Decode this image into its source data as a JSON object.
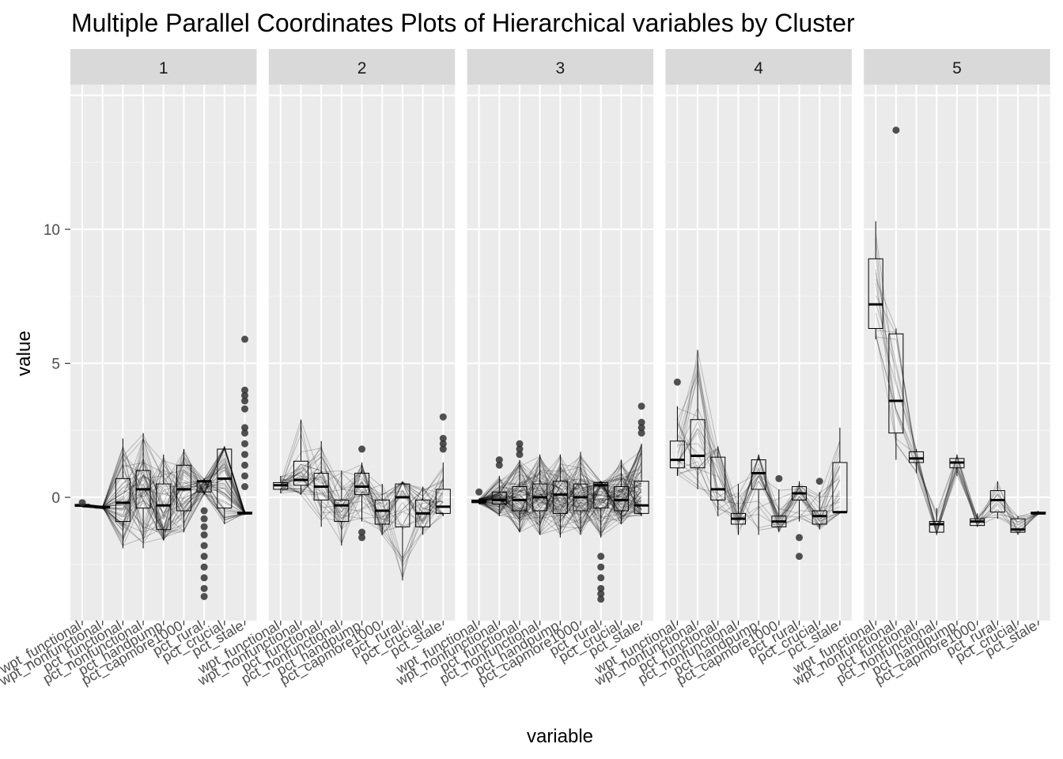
{
  "chart_data": {
    "type": "parallel-coordinates-boxplot",
    "title": "Multiple Parallel Coordinates Plots of Hierarchical variables by Cluster",
    "xlabel": "variable",
    "ylabel": "value",
    "ylim": [
      -4.6,
      15.4
    ],
    "yticks": [
      0,
      5,
      10
    ],
    "grid": true,
    "facets": [
      "1",
      "2",
      "3",
      "4",
      "5"
    ],
    "variables": [
      "wpt_functional",
      "wpt_nonfunctional",
      "pct_functional",
      "pct_nonfunctional",
      "pct_handpump",
      "pct_capmore1000",
      "pct_rural",
      "pct_crucial",
      "pct_stale"
    ],
    "clusters": [
      {
        "name": "1",
        "lines": 60,
        "stats": [
          {
            "q1": -0.34,
            "median": -0.3,
            "q3": -0.26,
            "low": -0.36,
            "high": -0.24,
            "outliers": [
              -0.2
            ]
          },
          {
            "q1": -0.4,
            "median": -0.37,
            "q3": -0.34,
            "low": -0.42,
            "high": -0.32,
            "outliers": []
          },
          {
            "q1": -0.9,
            "median": -0.2,
            "q3": 0.7,
            "low": -1.9,
            "high": 2.2,
            "outliers": []
          },
          {
            "q1": -0.4,
            "median": 0.3,
            "q3": 1.0,
            "low": -1.9,
            "high": 2.4,
            "outliers": []
          },
          {
            "q1": -1.2,
            "median": -0.3,
            "q3": 0.5,
            "low": -1.6,
            "high": 1.6,
            "outliers": []
          },
          {
            "q1": -0.5,
            "median": 0.3,
            "q3": 1.2,
            "low": -1.3,
            "high": 1.8,
            "outliers": []
          },
          {
            "q1": 0.2,
            "median": 0.6,
            "q3": 0.6,
            "low": 0.1,
            "high": 0.7,
            "outliers": [
              -0.5,
              -0.8,
              -1.1,
              -1.4,
              -1.8,
              -2.2,
              -2.6,
              -3.0,
              -3.4,
              -3.7
            ]
          },
          {
            "q1": -0.4,
            "median": 0.7,
            "q3": 1.8,
            "low": -1.0,
            "high": 1.9,
            "outliers": []
          },
          {
            "q1": -0.6,
            "median": -0.6,
            "q3": -0.55,
            "low": -0.65,
            "high": -0.5,
            "outliers": [
              0.4,
              0.8,
              1.2,
              1.6,
              2.0,
              2.4,
              2.6,
              3.3,
              3.6,
              3.8,
              4.0,
              5.9
            ]
          }
        ]
      },
      {
        "name": "2",
        "lines": 35,
        "stats": [
          {
            "q1": 0.3,
            "median": 0.45,
            "q3": 0.55,
            "low": 0.15,
            "high": 0.8,
            "outliers": []
          },
          {
            "q1": 0.45,
            "median": 0.65,
            "q3": 1.35,
            "low": 0.1,
            "high": 2.9,
            "outliers": []
          },
          {
            "q1": -0.1,
            "median": 0.4,
            "q3": 0.9,
            "low": -1.1,
            "high": 2.1,
            "outliers": []
          },
          {
            "q1": -0.9,
            "median": -0.3,
            "q3": -0.1,
            "low": -1.8,
            "high": 1.0,
            "outliers": []
          },
          {
            "q1": 0.1,
            "median": 0.4,
            "q3": 0.9,
            "low": -0.9,
            "high": 1.3,
            "outliers": [
              -1.3,
              -1.5,
              1.8
            ]
          },
          {
            "q1": -1.0,
            "median": -0.5,
            "q3": -0.1,
            "low": -1.4,
            "high": 0.5,
            "outliers": []
          },
          {
            "q1": -1.1,
            "median": 0.0,
            "q3": 0.5,
            "low": -3.1,
            "high": 0.6,
            "outliers": []
          },
          {
            "q1": -1.1,
            "median": -0.6,
            "q3": -0.1,
            "low": -1.4,
            "high": 0.4,
            "outliers": []
          },
          {
            "q1": -0.6,
            "median": -0.35,
            "q3": 0.3,
            "low": -0.7,
            "high": 1.3,
            "outliers": [
              1.8,
              2.0,
              2.2,
              3.0
            ]
          }
        ]
      },
      {
        "name": "3",
        "lines": 90,
        "stats": [
          {
            "q1": -0.2,
            "median": -0.15,
            "q3": -0.1,
            "low": -0.25,
            "high": -0.05,
            "outliers": [
              0.2
            ]
          },
          {
            "q1": -0.25,
            "median": -0.1,
            "q3": 0.2,
            "low": -0.7,
            "high": 0.8,
            "outliers": [
              1.2,
              1.4
            ]
          },
          {
            "q1": -0.5,
            "median": -0.1,
            "q3": 0.4,
            "low": -1.3,
            "high": 1.4,
            "outliers": [
              1.6,
              1.8,
              2.0
            ]
          },
          {
            "q1": -0.5,
            "median": 0.0,
            "q3": 0.5,
            "low": -1.4,
            "high": 1.6,
            "outliers": []
          },
          {
            "q1": -0.6,
            "median": 0.1,
            "q3": 0.6,
            "low": -1.5,
            "high": 1.6,
            "outliers": []
          },
          {
            "q1": -0.5,
            "median": 0.0,
            "q3": 0.5,
            "low": -1.4,
            "high": 1.7,
            "outliers": []
          },
          {
            "q1": -0.4,
            "median": 0.45,
            "q3": 0.55,
            "low": -1.5,
            "high": 0.6,
            "outliers": [
              -2.2,
              -2.6,
              -3.0,
              -3.4,
              -3.6,
              -3.8
            ]
          },
          {
            "q1": -0.5,
            "median": -0.1,
            "q3": 0.4,
            "low": -1.0,
            "high": 1.4,
            "outliers": []
          },
          {
            "q1": -0.6,
            "median": -0.3,
            "q3": 0.6,
            "low": -0.7,
            "high": 2.0,
            "outliers": [
              2.4,
              2.6,
              2.8,
              3.4
            ]
          }
        ]
      },
      {
        "name": "4",
        "lines": 25,
        "stats": [
          {
            "q1": 1.1,
            "median": 1.4,
            "q3": 2.1,
            "low": 0.8,
            "high": 3.4,
            "outliers": [
              4.3
            ]
          },
          {
            "q1": 1.1,
            "median": 1.55,
            "q3": 2.9,
            "low": 0.3,
            "high": 5.5,
            "outliers": []
          },
          {
            "q1": -0.1,
            "median": 0.3,
            "q3": 1.5,
            "low": -0.7,
            "high": 1.9,
            "outliers": []
          },
          {
            "q1": -1.0,
            "median": -0.8,
            "q3": -0.6,
            "low": -1.4,
            "high": 0.5,
            "outliers": []
          },
          {
            "q1": 0.3,
            "median": 0.9,
            "q3": 1.4,
            "low": -1.4,
            "high": 1.6,
            "outliers": []
          },
          {
            "q1": -1.1,
            "median": -0.9,
            "q3": -0.7,
            "low": -1.3,
            "high": 0.3,
            "outliers": [
              0.7
            ]
          },
          {
            "q1": -0.1,
            "median": 0.15,
            "q3": 0.4,
            "low": -0.9,
            "high": 0.6,
            "outliers": [
              -1.5,
              -2.2
            ]
          },
          {
            "q1": -1.0,
            "median": -0.7,
            "q3": -0.5,
            "low": -1.2,
            "high": 0.2,
            "outliers": [
              0.6
            ]
          },
          {
            "q1": -0.55,
            "median": -0.55,
            "q3": 1.3,
            "low": -0.6,
            "high": 2.6,
            "outliers": []
          }
        ]
      },
      {
        "name": "5",
        "lines": 15,
        "stats": [
          {
            "q1": 6.3,
            "median": 7.2,
            "q3": 8.9,
            "low": 5.9,
            "high": 10.3,
            "outliers": []
          },
          {
            "q1": 2.4,
            "median": 3.6,
            "q3": 6.1,
            "low": 1.4,
            "high": 6.3,
            "outliers": [
              13.7
            ]
          },
          {
            "q1": 1.3,
            "median": 1.45,
            "q3": 1.7,
            "low": 0.9,
            "high": 1.8,
            "outliers": []
          },
          {
            "q1": -1.3,
            "median": -1.0,
            "q3": -0.9,
            "low": -1.4,
            "high": -0.4,
            "outliers": []
          },
          {
            "q1": 1.1,
            "median": 1.3,
            "q3": 1.45,
            "low": 0.8,
            "high": 1.6,
            "outliers": []
          },
          {
            "q1": -1.05,
            "median": -0.9,
            "q3": -0.8,
            "low": -1.1,
            "high": -0.6,
            "outliers": []
          },
          {
            "q1": -0.55,
            "median": -0.1,
            "q3": 0.25,
            "low": -0.8,
            "high": 0.6,
            "outliers": []
          },
          {
            "q1": -1.3,
            "median": -1.2,
            "q3": -0.8,
            "low": -1.4,
            "high": -0.7,
            "outliers": []
          },
          {
            "q1": -0.62,
            "median": -0.6,
            "q3": -0.55,
            "low": -0.65,
            "high": -0.5,
            "outliers": []
          }
        ]
      }
    ]
  }
}
